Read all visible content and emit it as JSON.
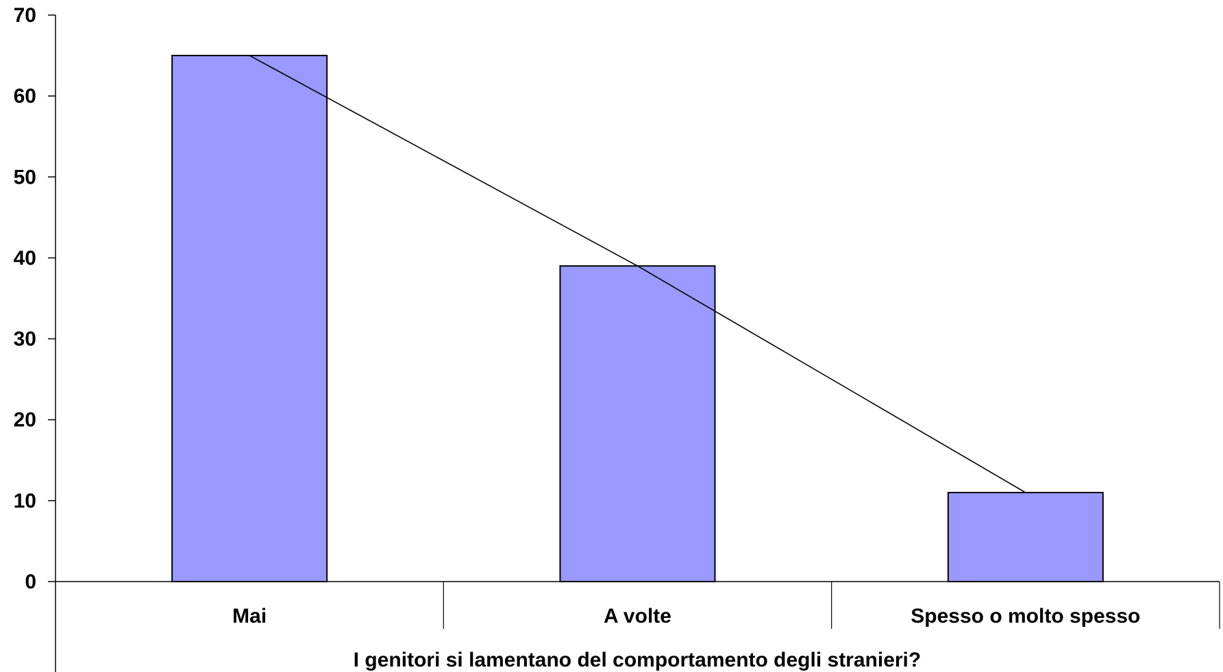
{
  "chart_data": {
    "type": "bar",
    "title": "",
    "xlabel": "I genitori si lamentano del comportamento degli stranieri?",
    "ylabel": "",
    "categories": [
      "Mai",
      "A volte",
      "Spesso o molto spesso"
    ],
    "series": [
      {
        "values": [
          65,
          39,
          11
        ]
      }
    ],
    "trend_line": {
      "values": [
        65,
        39,
        11
      ]
    },
    "ylim": [
      0,
      70
    ],
    "yticks": [
      0,
      10,
      20,
      30,
      40,
      50,
      60,
      70
    ],
    "grid": false,
    "legend": "none",
    "colors": {
      "bar_fill": "#9999ff",
      "bar_stroke": "#000000",
      "line": "#000000"
    }
  }
}
